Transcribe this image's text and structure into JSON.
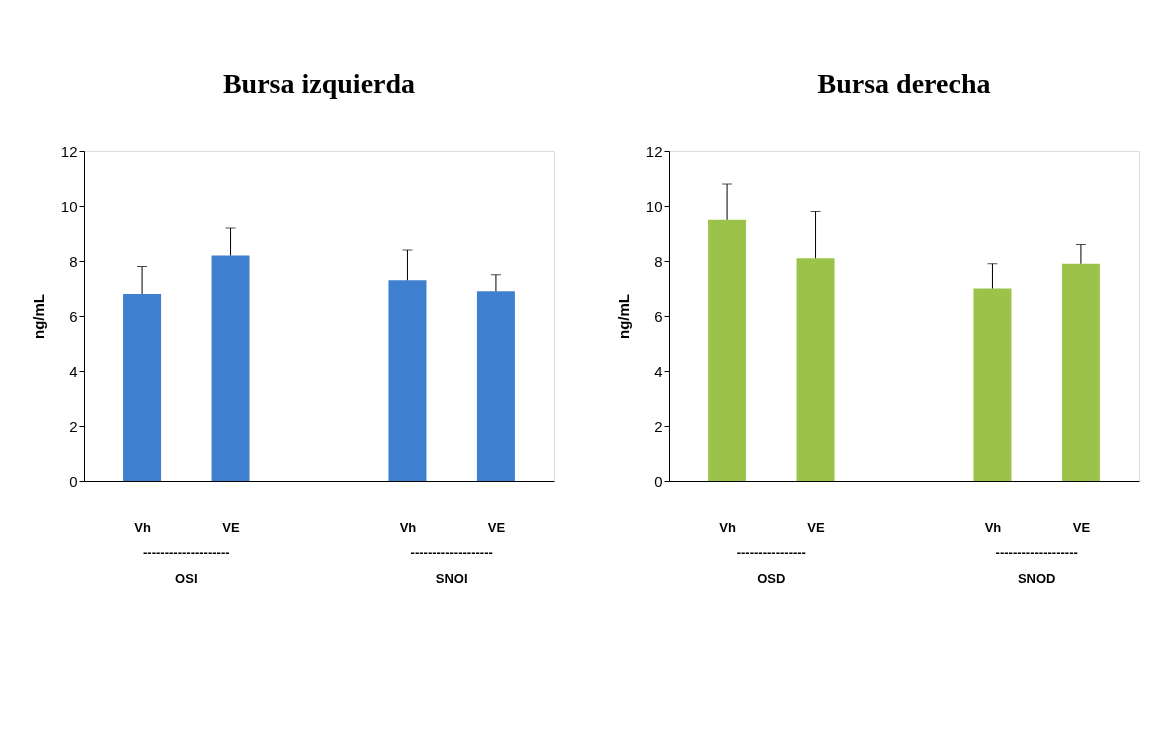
{
  "chart_data": [
    {
      "type": "bar",
      "title": "Bursa izquierda",
      "ylabel": "ng/mL",
      "categories": [
        "Vh",
        "VE",
        null,
        "Vh",
        "VE"
      ],
      "color": "#3f7fcf",
      "values": [
        6.8,
        8.2,
        null,
        7.3,
        6.9
      ],
      "errors": [
        [
          6.8,
          7.8
        ],
        [
          8.2,
          9.2
        ],
        null,
        [
          7.3,
          8.4
        ],
        [
          6.9,
          7.5
        ]
      ],
      "ylim": [
        0,
        12
      ],
      "yticks": [
        0,
        2,
        4,
        6,
        8,
        10,
        12
      ],
      "annotations": [
        "--------------------\nOSI",
        "-------------------\nSNOI"
      ]
    },
    {
      "type": "bar",
      "title": "Bursa derecha",
      "ylabel": "ng/mL",
      "categories": [
        "Vh",
        "VE",
        null,
        "Vh",
        "VE"
      ],
      "color": "#9bc34a",
      "values": [
        9.5,
        8.1,
        null,
        7.0,
        7.9
      ],
      "errors": [
        [
          9.5,
          10.8
        ],
        [
          8.1,
          9.8
        ],
        null,
        [
          7.0,
          7.9
        ],
        [
          7.9,
          8.6
        ]
      ],
      "ylim": [
        0,
        12
      ],
      "yticks": [
        0,
        2,
        4,
        6,
        8,
        10,
        12
      ],
      "annotations": [
        "----------------\nOSD",
        "-------------------\nSNOD"
      ]
    }
  ]
}
